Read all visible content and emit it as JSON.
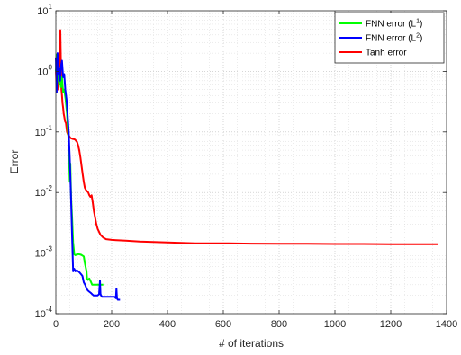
{
  "chart_data": {
    "type": "line",
    "xlabel": "# of iterations",
    "ylabel": "Error",
    "xlim": [
      0,
      1400
    ],
    "ylim": [
      0.0001,
      10
    ],
    "yscale": "log",
    "grid": true,
    "minor_grid": true,
    "legend_position": "top-right",
    "x_ticks": [
      0,
      200,
      400,
      600,
      800,
      1000,
      1200,
      1400
    ],
    "x_tick_labels": [
      "0",
      "200",
      "400",
      "600",
      "800",
      "1000",
      "1200",
      "1400"
    ],
    "y_ticks": [
      {
        "value": 0.0001,
        "base": "10",
        "exp": "-4"
      },
      {
        "value": 0.001,
        "base": "10",
        "exp": "-3"
      },
      {
        "value": 0.01,
        "base": "10",
        "exp": "-2"
      },
      {
        "value": 0.1,
        "base": "10",
        "exp": "-1"
      },
      {
        "value": 1,
        "base": "10",
        "exp": "0"
      },
      {
        "value": 10,
        "base": "10",
        "exp": "1"
      }
    ],
    "series": [
      {
        "name": "FNN error (L",
        "name_sup": "1",
        "name_end": ")",
        "color": "#00ff00",
        "x": [
          0,
          3,
          6,
          9,
          12,
          15,
          18,
          22,
          26,
          30,
          35,
          40,
          45,
          50,
          52,
          55,
          58,
          62,
          66,
          70,
          75,
          80,
          90,
          100,
          105,
          110,
          112,
          115,
          120,
          125,
          130,
          140,
          150,
          160,
          170
        ],
        "y": [
          1.0,
          1.9,
          0.7,
          1.3,
          0.6,
          1.0,
          0.55,
          0.8,
          0.45,
          0.5,
          0.35,
          0.2,
          0.08,
          0.015,
          0.03,
          0.008,
          0.004,
          0.0015,
          0.00095,
          0.00092,
          0.00095,
          0.00096,
          0.00094,
          0.00088,
          0.00065,
          0.0005,
          0.00037,
          0.00036,
          0.00038,
          0.00034,
          0.0003,
          0.0003,
          0.0003,
          0.0003,
          0.0003
        ]
      },
      {
        "name": "FNN error (L",
        "name_sup": "2",
        "name_end": ")",
        "color": "#0000ff",
        "x": [
          0,
          3,
          6,
          9,
          12,
          15,
          18,
          22,
          26,
          30,
          34,
          38,
          42,
          46,
          50,
          54,
          58,
          62,
          66,
          70,
          75,
          80,
          85,
          90,
          95,
          100,
          105,
          110,
          115,
          120,
          125,
          130,
          135,
          140,
          145,
          150,
          155,
          158,
          160,
          162,
          165,
          170,
          180,
          190,
          200,
          210,
          215,
          217,
          219,
          222,
          230
        ],
        "y": [
          1.7,
          0.45,
          2.0,
          0.9,
          1.1,
          0.7,
          1.2,
          1.5,
          0.8,
          0.9,
          0.5,
          0.35,
          0.2,
          0.1,
          0.035,
          0.01,
          0.002,
          0.0005,
          0.00055,
          0.0005,
          0.00052,
          0.0005,
          0.00048,
          0.00045,
          0.00042,
          0.00033,
          0.0003,
          0.00026,
          0.00024,
          0.00023,
          0.00022,
          0.00021,
          0.0002,
          0.0002,
          0.0002,
          0.0002,
          0.00021,
          0.00035,
          0.00021,
          0.0002,
          0.00019,
          0.00019,
          0.00019,
          0.00019,
          0.00019,
          0.00019,
          0.00018,
          0.00026,
          0.00018,
          0.00017,
          0.00017
        ]
      },
      {
        "name": "Tanh error",
        "name_sup": "",
        "name_end": "",
        "color": "#ff0000",
        "x": [
          0,
          2,
          4,
          6,
          8,
          10,
          12,
          14,
          16,
          18,
          20,
          22,
          24,
          26,
          28,
          30,
          33,
          36,
          40,
          44,
          48,
          52,
          56,
          60,
          64,
          68,
          72,
          76,
          80,
          84,
          88,
          92,
          96,
          100,
          104,
          108,
          112,
          116,
          120,
          124,
          128,
          132,
          136,
          140,
          145,
          150,
          160,
          170,
          180,
          200,
          250,
          300,
          400,
          500,
          600,
          700,
          800,
          900,
          1000,
          1100,
          1200,
          1300,
          1370
        ],
        "y": [
          1.1,
          0.6,
          0.8,
          0.5,
          1.0,
          0.6,
          2.0,
          1.2,
          4.8,
          1.5,
          0.5,
          0.4,
          0.3,
          0.25,
          0.2,
          0.18,
          0.15,
          0.14,
          0.1,
          0.09,
          0.085,
          0.08,
          0.078,
          0.077,
          0.076,
          0.075,
          0.072,
          0.068,
          0.06,
          0.05,
          0.038,
          0.028,
          0.02,
          0.015,
          0.012,
          0.011,
          0.0105,
          0.01,
          0.009,
          0.0085,
          0.009,
          0.007,
          0.005,
          0.004,
          0.003,
          0.0025,
          0.002,
          0.0018,
          0.0017,
          0.00165,
          0.0016,
          0.00155,
          0.0015,
          0.00145,
          0.00145,
          0.00143,
          0.00142,
          0.00142,
          0.00141,
          0.00141,
          0.0014,
          0.0014,
          0.0014
        ]
      }
    ]
  }
}
